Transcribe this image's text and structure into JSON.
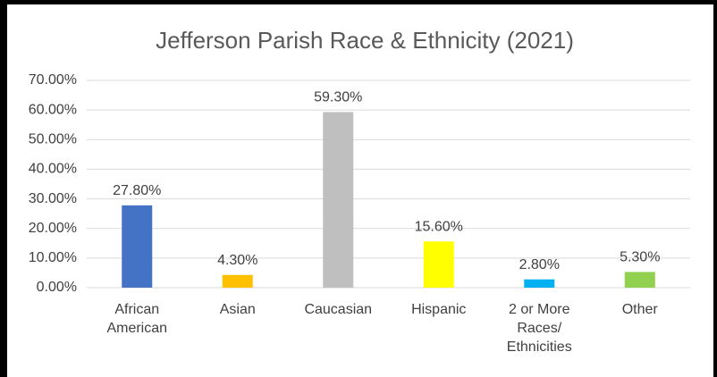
{
  "chart_data": {
    "type": "bar",
    "title": "Jefferson Parish Race & Ethnicity (2021)",
    "categories": [
      "African American",
      "Asian",
      "Caucasian",
      "Hispanic",
      "2 or More Races/ Ethnicities",
      "Other"
    ],
    "values": [
      27.8,
      4.3,
      59.3,
      15.6,
      2.8,
      5.3
    ],
    "value_labels": [
      "27.80%",
      "4.30%",
      "59.30%",
      "15.60%",
      "2.80%",
      "5.30%"
    ],
    "colors": [
      "#4472c4",
      "#ffc000",
      "#bfbfbf",
      "#ffff00",
      "#00b0f0",
      "#92d050"
    ],
    "ylim": [
      0,
      70
    ],
    "yticks": [
      {
        "value": 0,
        "label": "0.00%"
      },
      {
        "value": 10,
        "label": "10.00%"
      },
      {
        "value": 20,
        "label": "20.00%"
      },
      {
        "value": 30,
        "label": "30.00%"
      },
      {
        "value": 40,
        "label": "40.00%"
      },
      {
        "value": 50,
        "label": "50.00%"
      },
      {
        "value": 60,
        "label": "60.00%"
      },
      {
        "value": 70,
        "label": "70.00%"
      }
    ],
    "grid": true
  }
}
